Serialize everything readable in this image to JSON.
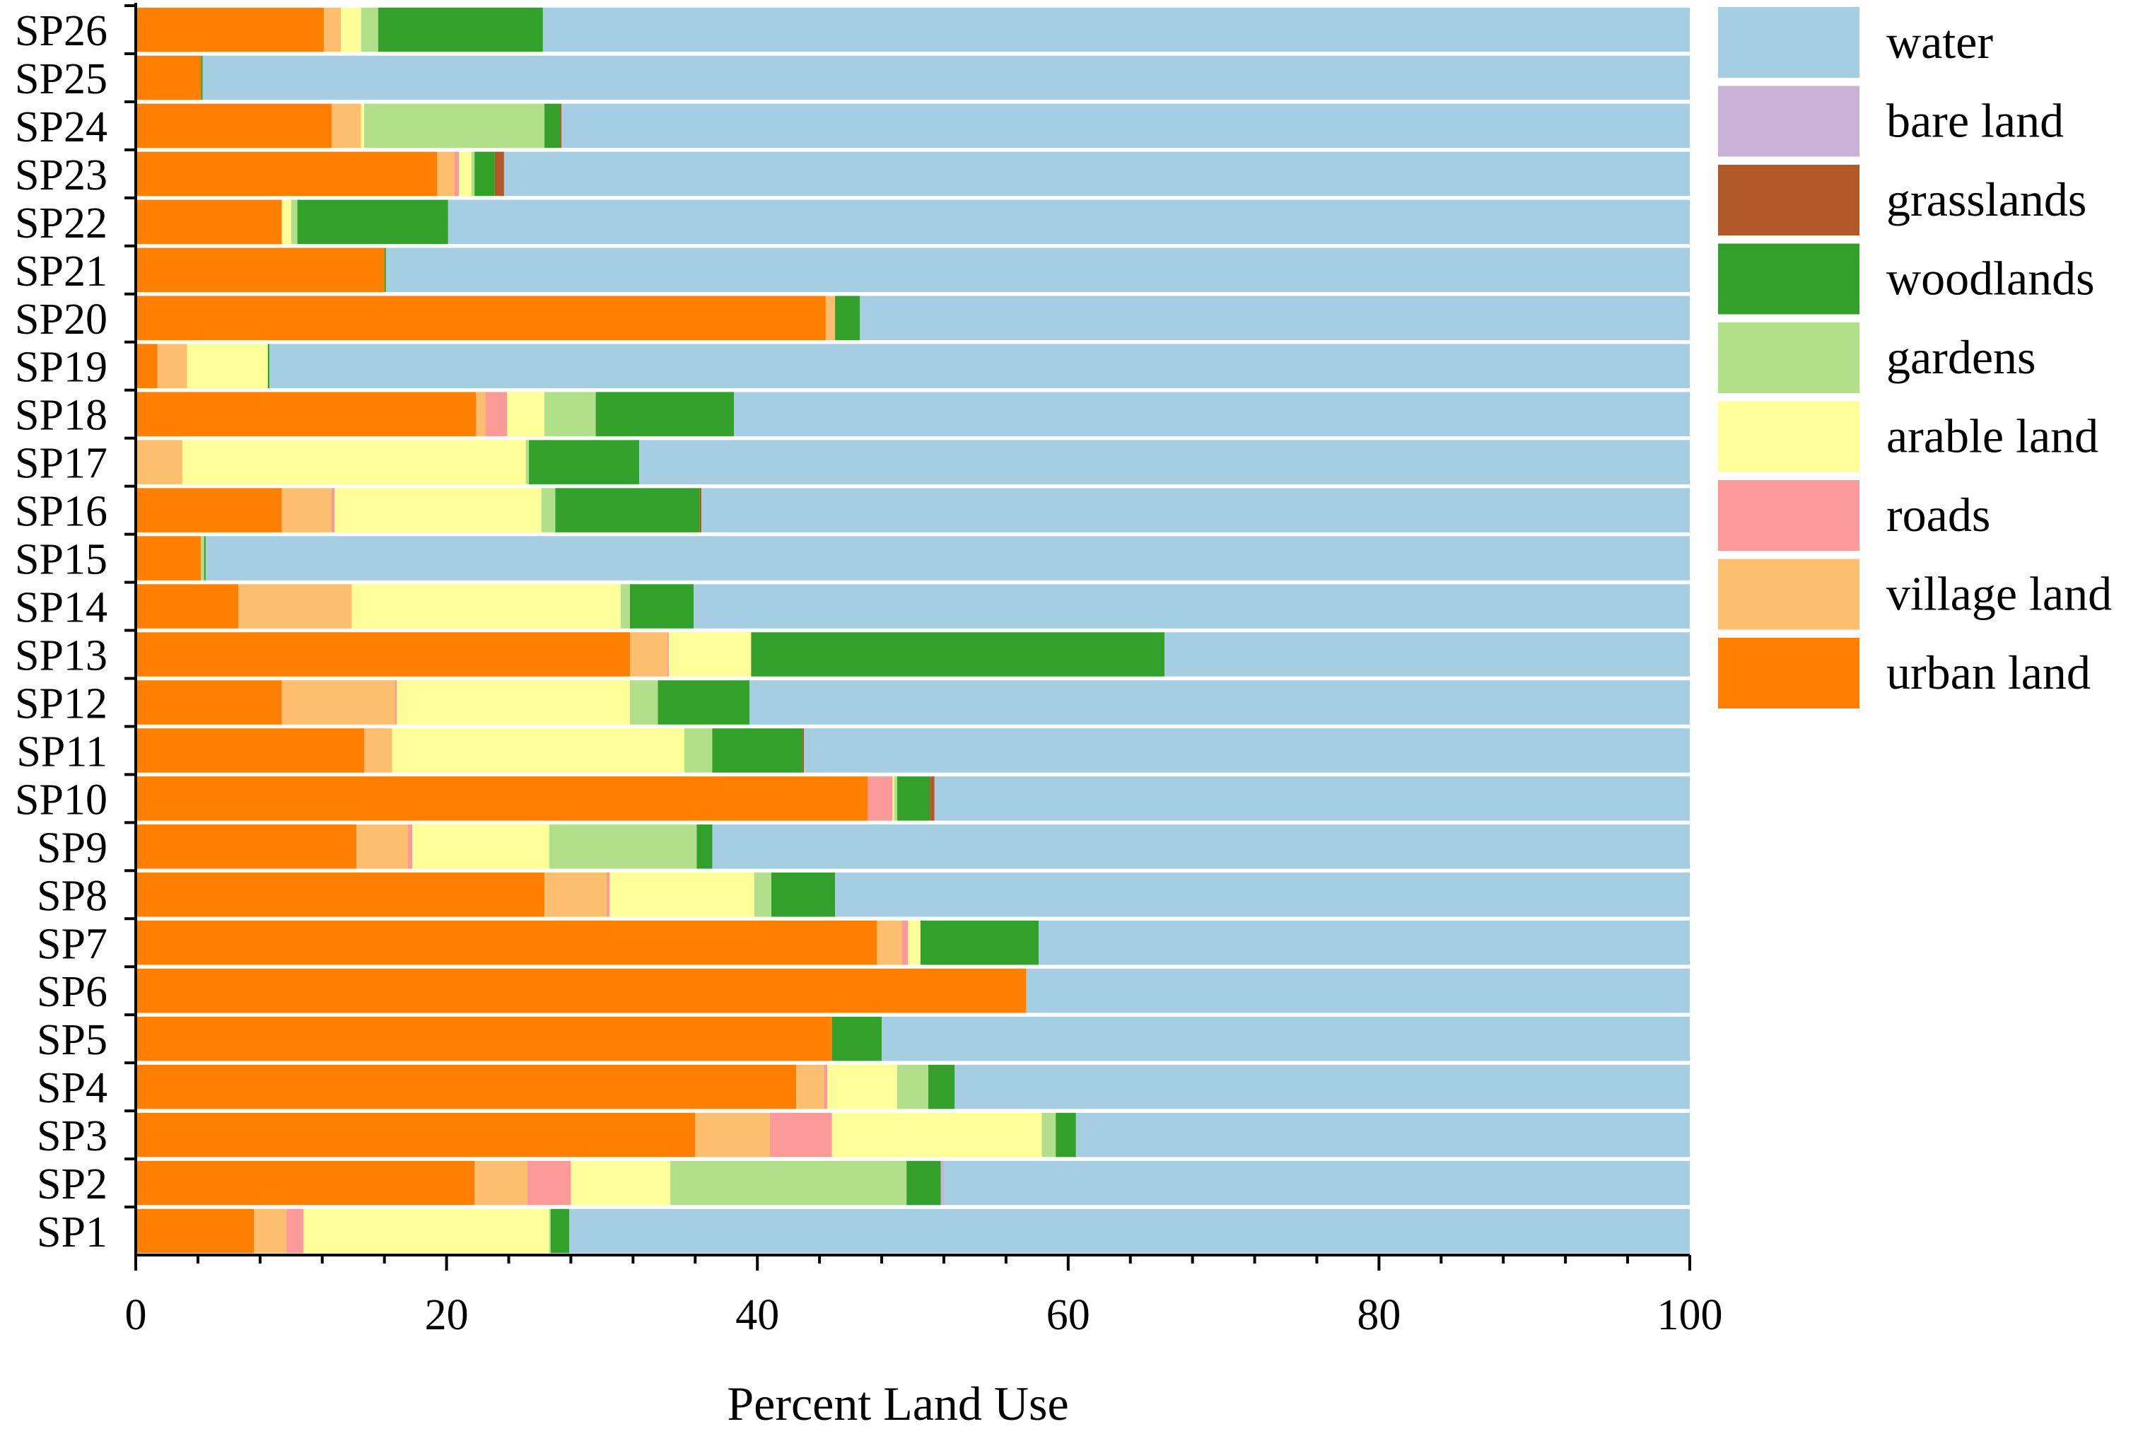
{
  "chart_data": {
    "type": "bar",
    "orientation": "horizontal",
    "stacked": true,
    "xlabel": "Percent Land Use",
    "ylabel": "",
    "xlim": [
      0,
      100
    ],
    "x_ticks": [
      "0",
      "20",
      "40",
      "60",
      "80",
      "100"
    ],
    "legend_position": "right",
    "categories": [
      "SP1",
      "SP2",
      "SP3",
      "SP4",
      "SP5",
      "SP6",
      "SP7",
      "SP8",
      "SP9",
      "SP10",
      "SP11",
      "SP12",
      "SP13",
      "SP14",
      "SP15",
      "SP16",
      "SP17",
      "SP18",
      "SP19",
      "SP20",
      "SP21",
      "SP22",
      "SP23",
      "SP24",
      "SP25",
      "SP26"
    ],
    "series": [
      {
        "name": "urban land",
        "color": "#FF7F00",
        "values": [
          7.6,
          21.8,
          36.0,
          42.5,
          44.8,
          57.3,
          47.7,
          26.3,
          14.2,
          47.1,
          14.7,
          9.4,
          31.8,
          6.6,
          4.2,
          9.4,
          0.0,
          21.9,
          1.4,
          44.4,
          16.0,
          9.4,
          19.4,
          12.6,
          4.2,
          12.1
        ]
      },
      {
        "name": "village land",
        "color": "#FDBF6F",
        "values": [
          2.1,
          3.4,
          4.8,
          1.8,
          0.0,
          0.0,
          1.6,
          4.0,
          3.3,
          0.0,
          1.8,
          7.3,
          2.4,
          7.3,
          0.0,
          3.2,
          3.0,
          0.6,
          1.9,
          0.6,
          0.0,
          0.0,
          1.1,
          1.9,
          0.0,
          1.1
        ]
      },
      {
        "name": "roads",
        "color": "#FB9A99",
        "values": [
          1.1,
          2.8,
          4.0,
          0.2,
          0.0,
          0.0,
          0.4,
          0.2,
          0.3,
          1.6,
          0.0,
          0.1,
          0.1,
          0.0,
          0.0,
          0.2,
          0.0,
          1.4,
          0.0,
          0.0,
          0.0,
          0.0,
          0.3,
          0.0,
          0.0,
          0.0
        ]
      },
      {
        "name": "arable land",
        "color": "#FFFF99",
        "values": [
          15.8,
          6.4,
          13.5,
          4.5,
          0.0,
          0.0,
          0.8,
          9.3,
          8.8,
          0.1,
          18.8,
          15.0,
          5.3,
          17.3,
          0.0,
          13.3,
          22.1,
          2.4,
          5.2,
          0.0,
          0.0,
          0.6,
          0.8,
          0.2,
          0.0,
          1.3
        ]
      },
      {
        "name": "gardens",
        "color": "#B2DF8A",
        "values": [
          0.1,
          15.2,
          0.9,
          2.0,
          0.0,
          0.0,
          0.0,
          1.1,
          9.5,
          0.2,
          1.8,
          1.8,
          0.0,
          0.6,
          0.2,
          0.9,
          0.2,
          3.3,
          0.0,
          0.0,
          0.0,
          0.4,
          0.2,
          11.6,
          0.0,
          1.1
        ]
      },
      {
        "name": "woodlands",
        "color": "#33A02C",
        "values": [
          1.2,
          2.2,
          1.3,
          1.7,
          3.2,
          0.0,
          7.6,
          4.1,
          1.0,
          2.1,
          5.8,
          5.9,
          26.6,
          4.1,
          0.1,
          9.3,
          7.1,
          8.9,
          0.1,
          1.6,
          0.1,
          9.7,
          1.3,
          1.0,
          0.1,
          10.6
        ]
      },
      {
        "name": "grasslands",
        "color": "#B15928",
        "values": [
          0.0,
          0.0,
          0.0,
          0.0,
          0.0,
          0.0,
          0.0,
          0.0,
          0.0,
          0.3,
          0.1,
          0.0,
          0.0,
          0.0,
          0.0,
          0.1,
          0.0,
          0.0,
          0.0,
          0.0,
          0.0,
          0.0,
          0.6,
          0.1,
          0.0,
          0.0
        ]
      },
      {
        "name": "bare land",
        "color": "#CAB2D6",
        "values": [
          0.0,
          0.2,
          0.0,
          0.0,
          0.0,
          0.0,
          0.0,
          0.0,
          0.0,
          0.0,
          0.0,
          0.0,
          0.0,
          0.0,
          0.0,
          0.0,
          0.0,
          0.0,
          0.0,
          0.0,
          0.0,
          0.0,
          0.0,
          0.0,
          0.0,
          0.0
        ]
      },
      {
        "name": "water",
        "color": "#A6CEE3",
        "values": [
          72.1,
          48.0,
          39.5,
          47.3,
          52.0,
          42.7,
          41.9,
          55.0,
          62.9,
          48.6,
          57.0,
          60.5,
          33.8,
          64.1,
          95.5,
          63.6,
          67.6,
          61.5,
          91.4,
          53.4,
          83.9,
          79.9,
          76.3,
          72.6,
          95.7,
          73.8
        ]
      }
    ],
    "legend": [
      "water",
      "bare land",
      "grasslands",
      "woodlands",
      "gardens",
      "arable land",
      "roads",
      "village land",
      "urban land"
    ]
  }
}
